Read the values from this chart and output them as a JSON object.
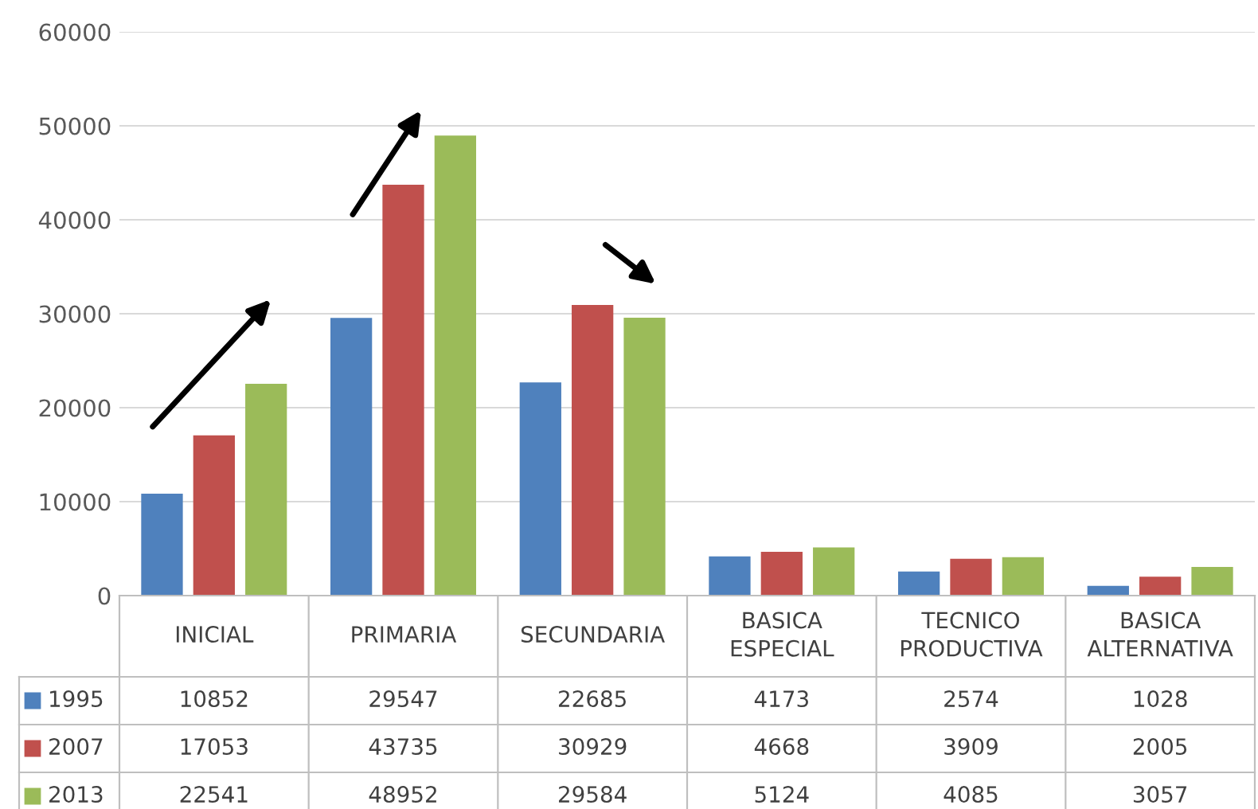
{
  "chart_data": {
    "type": "bar",
    "categories": [
      "INICIAL",
      "PRIMARIA",
      "SECUNDARIA",
      "BASICA ESPECIAL",
      "TECNICO PRODUCTIVA",
      "BASICA ALTERNATIVA"
    ],
    "series": [
      {
        "name": "1995",
        "color": "#4f81bd",
        "values": [
          10852,
          29547,
          22685,
          4173,
          2574,
          1028
        ]
      },
      {
        "name": "2007",
        "color": "#c0504d",
        "values": [
          17053,
          43735,
          30929,
          4668,
          3909,
          2005
        ]
      },
      {
        "name": "2013",
        "color": "#9bbb59",
        "values": [
          22541,
          48952,
          29584,
          5124,
          4085,
          3057
        ]
      }
    ],
    "ylim": [
      0,
      60000
    ],
    "yticks": [
      0,
      10000,
      20000,
      30000,
      40000,
      50000,
      60000
    ],
    "grid": "y",
    "data_labels": true,
    "legend": "bottom left"
  }
}
